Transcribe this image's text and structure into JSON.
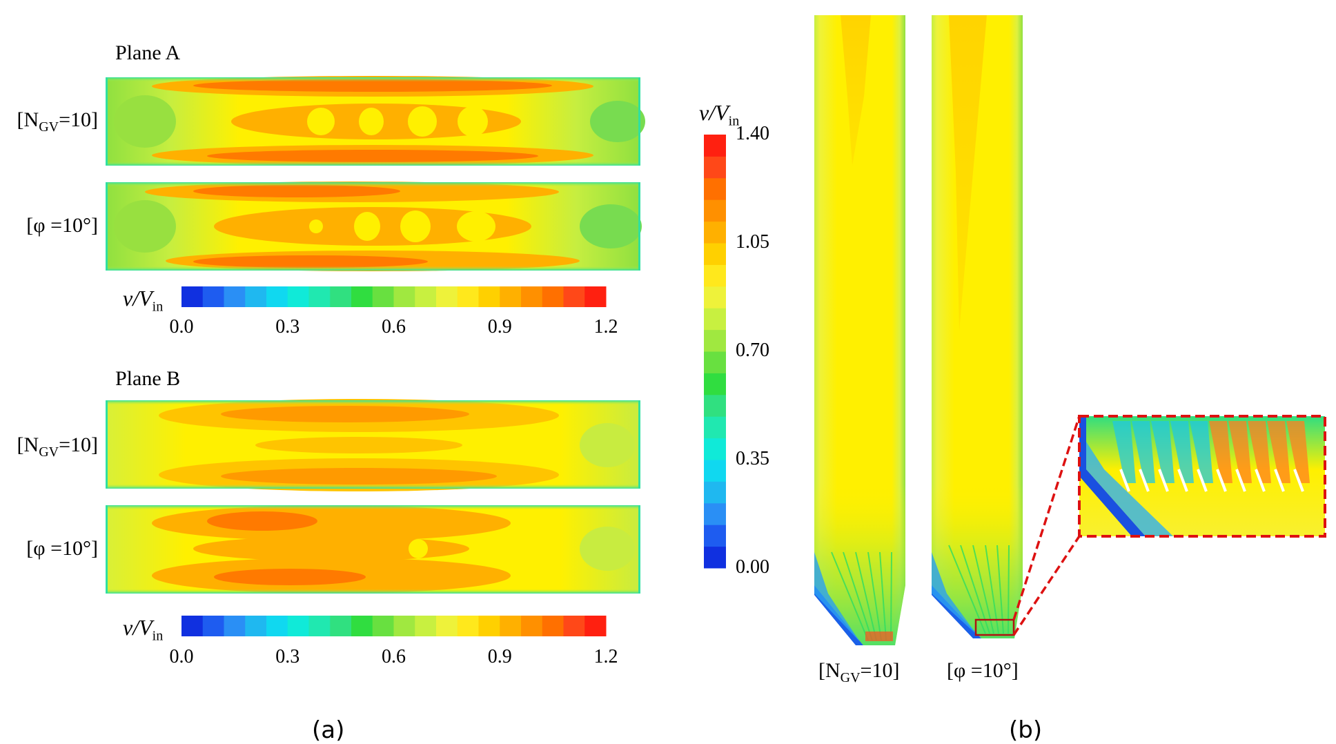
{
  "panel_a": {
    "plane_a_title": "Plane A",
    "plane_b_title": "Plane B",
    "row_labels": [
      {
        "base": "[N",
        "sub": "GV",
        "tail": "=10]"
      },
      {
        "base": "[φ =10°]"
      }
    ],
    "colorbar": {
      "label": {
        "var": "v/V",
        "sub": "in"
      },
      "ticks": [
        "0.0",
        "0.3",
        "0.6",
        "0.9",
        "1.2"
      ],
      "min": 0.0,
      "max": 1.2
    },
    "caption": "(a)"
  },
  "panel_b": {
    "colorbar": {
      "label": {
        "var": "v/V",
        "sub": "in"
      },
      "ticks": [
        "1.40",
        "1.05",
        "0.70",
        "0.35",
        "0.00"
      ],
      "min": 0.0,
      "max": 1.4
    },
    "channel_labels": [
      {
        "base": "[N",
        "sub": "GV",
        "tail": "=10]"
      },
      {
        "base": "[φ =10°]"
      }
    ],
    "caption": "(b)"
  },
  "colors": {
    "scale": [
      "#1030e0",
      "#1e5cf0",
      "#2a8ff5",
      "#1fb8f0",
      "#10d8f0",
      "#10ead8",
      "#20e8b0",
      "#30e080",
      "#30dd40",
      "#68e040",
      "#a0e840",
      "#c8f040",
      "#eef23a",
      "#ffe81c",
      "#ffd000",
      "#ffb000",
      "#ff9000",
      "#ff7000",
      "#ff4818",
      "#ff2010"
    ],
    "highlight": "#dd1111"
  }
}
